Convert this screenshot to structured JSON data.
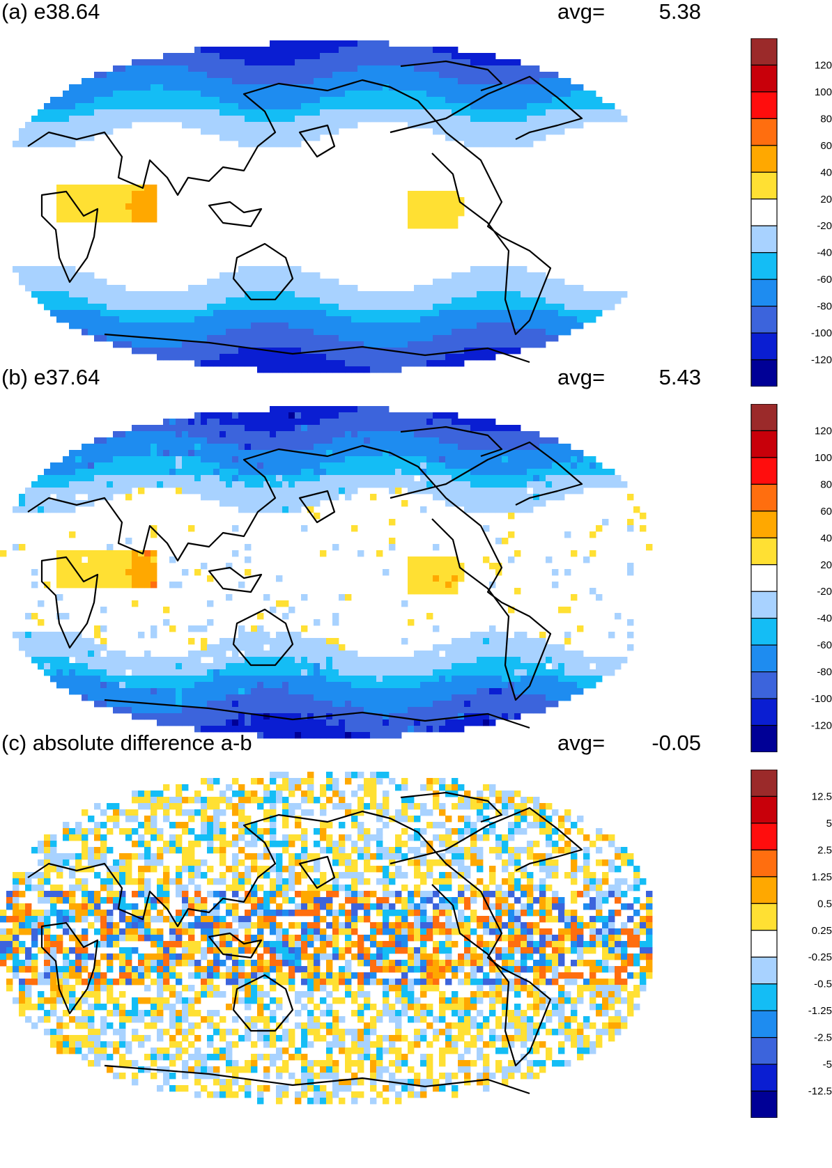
{
  "figure": {
    "panels": [
      {
        "id": "a",
        "title": "(a) e38.64",
        "avg_label": "avg=",
        "avg_value": "5.38",
        "colorbar": "full"
      },
      {
        "id": "b",
        "title": "(b) e37.64",
        "avg_label": "avg=",
        "avg_value": "5.43",
        "colorbar": "full"
      },
      {
        "id": "c",
        "title": "(c) absolute difference a-b",
        "avg_label": "avg=",
        "avg_value": "-0.05",
        "colorbar": "diff"
      }
    ]
  },
  "colorbars": {
    "colors": [
      "#9b2a2a",
      "#c8000a",
      "#ff0d0d",
      "#ff6e0f",
      "#ffa800",
      "#ffe033",
      "#ffffff",
      "#a8d2ff",
      "#14bdf5",
      "#1e8cf0",
      "#3c64dc",
      "#0a1ed2",
      "#000096"
    ],
    "full": {
      "tick_labels": [
        "120",
        "100",
        "80",
        "60",
        "40",
        "20",
        "-20",
        "-40",
        "-60",
        "-80",
        "-100",
        "-120"
      ]
    },
    "diff": {
      "tick_labels": [
        "12.5",
        "5",
        "2.5",
        "1.25",
        "0.5",
        "0.25",
        "-0.25",
        "-0.5",
        "-1.25",
        "-2.5",
        "-5",
        "-12.5"
      ]
    }
  },
  "chart_data": [
    {
      "type": "heatmap",
      "title": "(a) e38.64",
      "annotation": "avg= 5.38",
      "projection": "robinson",
      "levels": [
        -120,
        -100,
        -80,
        -60,
        -40,
        -20,
        20,
        40,
        60,
        80,
        100,
        120
      ]
    },
    {
      "type": "heatmap",
      "title": "(b) e37.64",
      "annotation": "avg= 5.43",
      "projection": "robinson",
      "levels": [
        -120,
        -100,
        -80,
        -60,
        -40,
        -20,
        20,
        40,
        60,
        80,
        100,
        120
      ]
    },
    {
      "type": "heatmap",
      "title": "(c) absolute difference a-b",
      "annotation": "avg= -0.05",
      "projection": "robinson",
      "levels": [
        -12.5,
        -5,
        -2.5,
        -1.25,
        -0.5,
        -0.25,
        0.25,
        0.5,
        1.25,
        2.5,
        5,
        12.5
      ]
    }
  ]
}
